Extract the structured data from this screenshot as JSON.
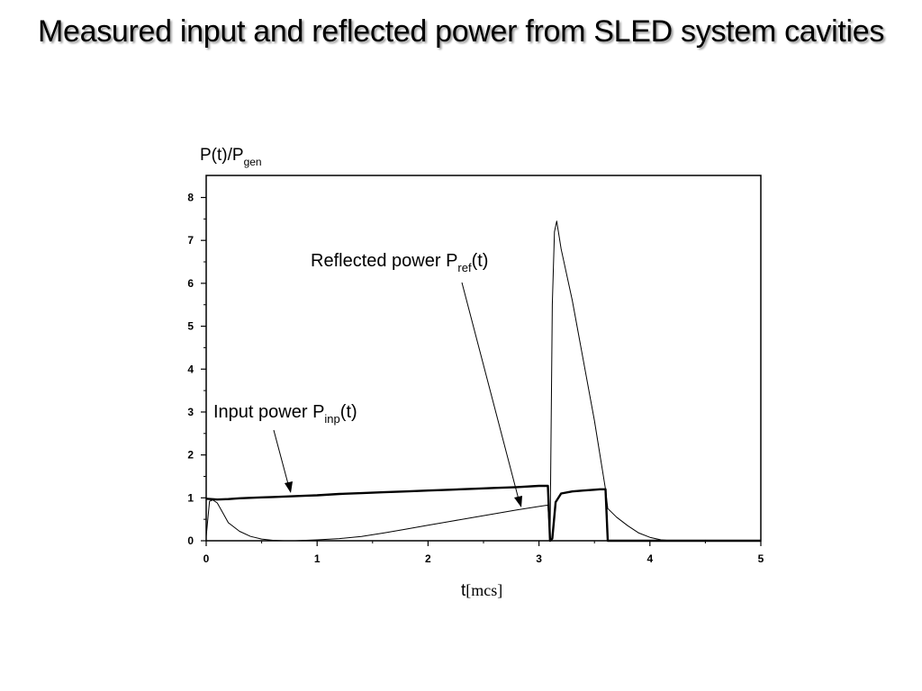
{
  "title": "Measured input and reflected power from SLED system cavities",
  "chart_data": {
    "type": "line",
    "ylabel": {
      "main": "P(t)/P",
      "sub": "gen"
    },
    "xlabel": {
      "main": "t",
      "unit": "[mcs]"
    },
    "xlim": [
      0,
      5
    ],
    "ylim": [
      0,
      8.5
    ],
    "xticks": [
      "0",
      "1",
      "2",
      "3",
      "4",
      "5"
    ],
    "yticks": [
      "0",
      "1",
      "2",
      "3",
      "4",
      "5",
      "6",
      "7",
      "8"
    ],
    "grid": false,
    "annotations": [
      {
        "main": "Reflected power P",
        "sub": "ref",
        "tail": "(t)"
      },
      {
        "main": "Input power P",
        "sub": "inp",
        "tail": "(t)"
      }
    ],
    "series": [
      {
        "name": "Input power",
        "style": "bold",
        "x": [
          0,
          0.1,
          0.2,
          0.3,
          0.4,
          0.5,
          0.6,
          0.7,
          0.8,
          0.9,
          1.0,
          1.2,
          1.4,
          1.6,
          1.8,
          2.0,
          2.2,
          2.4,
          2.6,
          2.8,
          3.0,
          3.08,
          3.1,
          3.12,
          3.15,
          3.2,
          3.3,
          3.4,
          3.5,
          3.55,
          3.6,
          3.62,
          5.0
        ],
        "y": [
          0.98,
          0.96,
          0.97,
          0.99,
          1.0,
          1.01,
          1.02,
          1.03,
          1.04,
          1.05,
          1.06,
          1.09,
          1.11,
          1.13,
          1.15,
          1.17,
          1.19,
          1.21,
          1.23,
          1.25,
          1.28,
          1.28,
          0.0,
          0.05,
          0.9,
          1.1,
          1.15,
          1.17,
          1.19,
          1.2,
          1.2,
          0.0,
          0.0
        ]
      },
      {
        "name": "Reflected power",
        "style": "thin",
        "x": [
          0,
          0.03,
          0.06,
          0.1,
          0.15,
          0.2,
          0.3,
          0.4,
          0.5,
          0.6,
          0.7,
          0.8,
          1.0,
          1.2,
          1.4,
          1.6,
          1.8,
          2.0,
          2.2,
          2.4,
          2.6,
          2.8,
          3.0,
          3.08,
          3.1,
          3.12,
          3.14,
          3.16,
          3.2,
          3.3,
          3.4,
          3.5,
          3.6,
          3.62,
          3.7,
          3.8,
          3.9,
          4.0,
          4.1,
          4.2,
          5.0
        ],
        "y": [
          0.1,
          0.92,
          0.95,
          0.88,
          0.65,
          0.42,
          0.22,
          0.1,
          0.04,
          0.01,
          0.0,
          0.0,
          0.02,
          0.05,
          0.1,
          0.18,
          0.27,
          0.36,
          0.45,
          0.54,
          0.63,
          0.72,
          0.8,
          0.83,
          0.0,
          5.5,
          7.2,
          7.45,
          6.8,
          5.6,
          4.2,
          2.8,
          1.2,
          0.75,
          0.55,
          0.35,
          0.18,
          0.08,
          0.02,
          0.0,
          0.0
        ]
      }
    ]
  }
}
